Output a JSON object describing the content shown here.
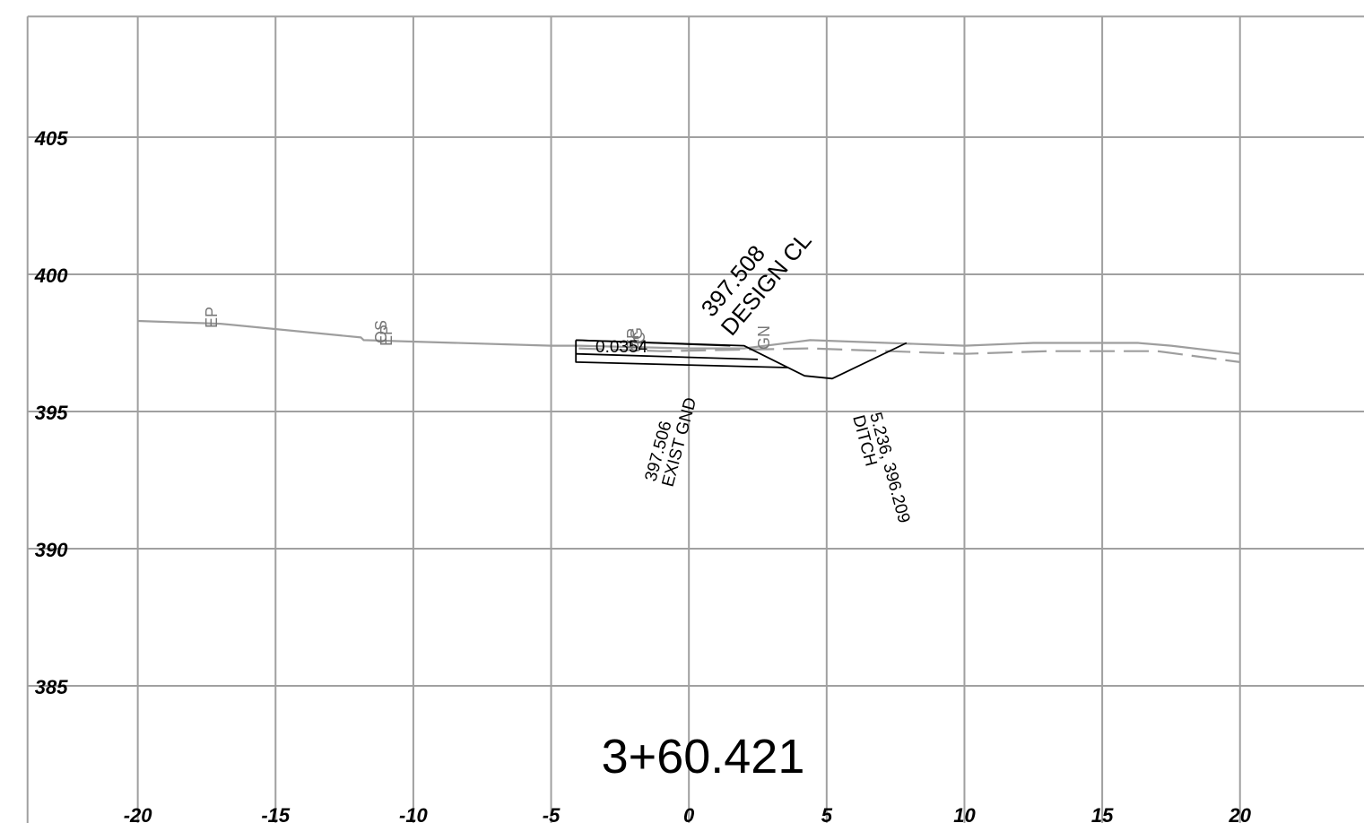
{
  "chart_data": {
    "type": "line",
    "title": "3+60.421",
    "xlim": [
      -25,
      24.5
    ],
    "ylim": [
      380,
      410
    ],
    "x_ticks": [
      "-20",
      "-15",
      "-10",
      "-5",
      "0",
      "5",
      "10",
      "15",
      "20"
    ],
    "y_ticks": [
      "385",
      "390",
      "395",
      "400",
      "405"
    ],
    "grid": true,
    "series": [
      {
        "style": "solid",
        "color": "#9e9e9e",
        "points": [
          [
            -20,
            398.3
          ],
          [
            -17,
            398.2
          ],
          [
            -11.9,
            397.7
          ],
          [
            -11.8,
            397.6
          ],
          [
            -5,
            397.4
          ],
          [
            -4,
            397.4
          ],
          [
            0,
            397.3
          ],
          [
            2,
            397.3
          ],
          [
            4.4,
            397.6
          ],
          [
            10,
            397.4
          ],
          [
            12.5,
            397.5
          ],
          [
            16.3,
            397.5
          ],
          [
            17.5,
            397.4
          ],
          [
            20,
            397.1
          ]
        ]
      },
      {
        "style": "dashed",
        "color": "#9e9e9e",
        "points": [
          [
            -4,
            397.3
          ],
          [
            -1,
            397.2
          ],
          [
            4.4,
            397.3
          ],
          [
            10,
            397.1
          ],
          [
            13,
            397.2
          ],
          [
            17,
            397.2
          ],
          [
            20,
            396.8
          ]
        ]
      },
      {
        "style": "solid",
        "color": "#000000",
        "points": [
          [
            -4.1,
            397.6
          ],
          [
            2,
            397.4
          ],
          [
            4.2,
            396.3
          ],
          [
            5.2,
            396.2
          ],
          [
            7.9,
            397.5
          ]
        ]
      },
      {
        "style": "solid",
        "color": "#000000",
        "points": [
          [
            -4.1,
            397.6
          ],
          [
            -4.1,
            396.8
          ],
          [
            3.6,
            396.6
          ]
        ]
      },
      {
        "style": "solid",
        "color": "#000000",
        "points": [
          [
            -4.1,
            397.1
          ],
          [
            2.5,
            396.9
          ]
        ]
      },
      {
        "style": "solid",
        "color": "#000000",
        "points": [
          [
            -4.1,
            397.6
          ],
          [
            1.5,
            397.4
          ]
        ]
      }
    ],
    "annotations": {
      "ep_left": "EP",
      "ep_mid": "EP",
      "os_mid": "OS",
      "cl_cluster": "EP",
      "cl_cluster_2": "OG",
      "cl_cluster_3": "C",
      "gn": "GN",
      "slope": "0.0354",
      "design_elev": "397.508",
      "design_label": "DESIGN CL",
      "exist_elev": "397.506",
      "exist_label": "EXIST GND",
      "ditch_coords": "5.236, 396.209",
      "ditch_label": "DITCH"
    }
  }
}
